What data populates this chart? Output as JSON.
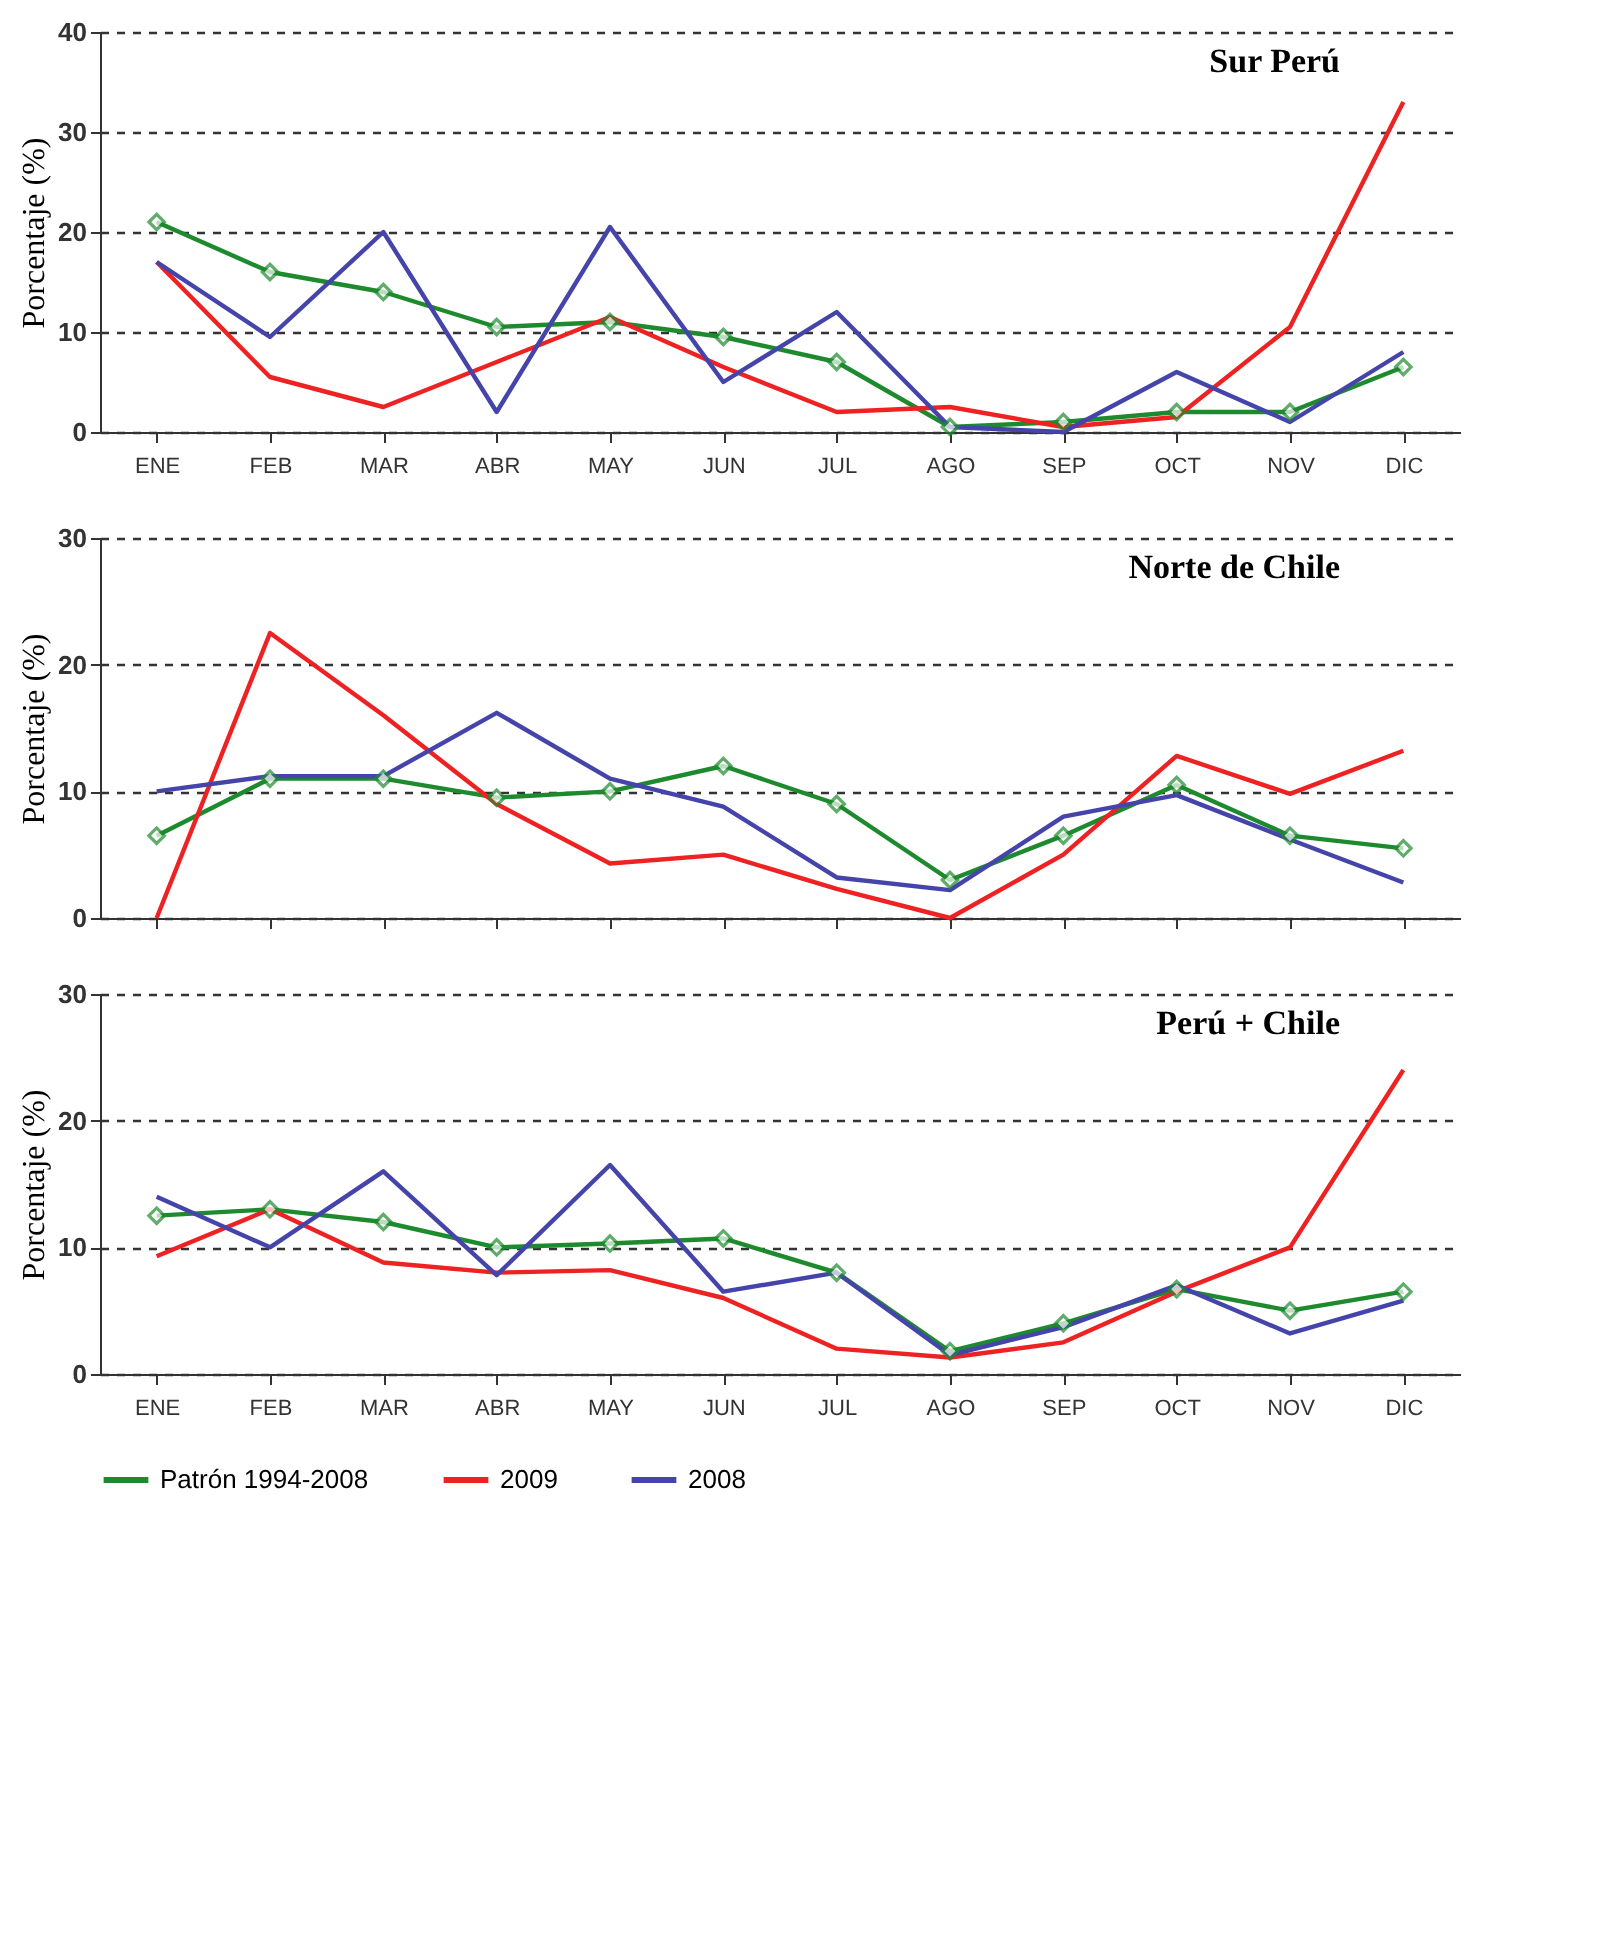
{
  "chart_data": [
    {
      "type": "line",
      "title": "Sur Perú",
      "ylabel": "Porcentaje (%)",
      "categories": [
        "ENE",
        "FEB",
        "MAR",
        "ABR",
        "MAY",
        "JUN",
        "JUL",
        "AGO",
        "SEP",
        "OCT",
        "NOV",
        "DIC"
      ],
      "ylim": [
        0,
        40
      ],
      "yticks": [
        0,
        10,
        20,
        30,
        40
      ],
      "grid": "y",
      "series": [
        {
          "color": "#1e8a2e",
          "marker": "diamond",
          "values": [
            21,
            16,
            14,
            10.5,
            11,
            9.5,
            7,
            0.5,
            1,
            2,
            2,
            6.5
          ]
        },
        {
          "color": "#ee2222",
          "values": [
            17,
            5.5,
            2.5,
            7,
            11.5,
            6.5,
            2,
            2.5,
            0.5,
            1.5,
            10.5,
            33
          ]
        },
        {
          "color": "#4444aa",
          "values": [
            17,
            9.5,
            20,
            2,
            20.5,
            5,
            12,
            0.5,
            0,
            6,
            1,
            8
          ]
        }
      ]
    },
    {
      "type": "line",
      "title": "Norte de Chile",
      "ylabel": "Porcentaje (%)",
      "categories": [
        null,
        null,
        null,
        null,
        null,
        null,
        null,
        null,
        null,
        null,
        null,
        null
      ],
      "ylim": [
        0,
        30
      ],
      "yticks": [
        0,
        10,
        20,
        30
      ],
      "grid": "y",
      "tick_labels": "y",
      "series": [
        {
          "color": "#1e8a2e",
          "marker": "diamond",
          "values": [
            6.5,
            11,
            11,
            9.5,
            10,
            12,
            9,
            3,
            6.5,
            10.5,
            6.5,
            5.5
          ]
        },
        {
          "color": "#ee2222",
          "values": [
            0,
            22.5,
            16,
            9,
            4.3,
            5,
            2.3,
            0,
            5,
            12.8,
            9.8,
            13.2
          ]
        },
        {
          "color": "#4444aa",
          "values": [
            10,
            11.2,
            11.2,
            16.2,
            11,
            8.8,
            3.2,
            2.2,
            8,
            9.7,
            6.2,
            2.8
          ]
        }
      ]
    },
    {
      "type": "line",
      "title": "Perú + Chile",
      "ylabel": "Porcentaje (%)",
      "categories": [
        "ENE",
        "FEB",
        "MAR",
        "ABR",
        "MAY",
        "JUN",
        "JUL",
        "AGO",
        "SEP",
        "OCT",
        "NOV",
        "DIC"
      ],
      "ylim": [
        0,
        30
      ],
      "yticks": [
        0,
        10,
        20,
        30
      ],
      "grid": "y",
      "legend": "bottom",
      "series": [
        {
          "name": "Patrón 1994-2008",
          "color": "#1e8a2e",
          "marker": "diamond",
          "values": [
            12.5,
            13,
            12,
            10,
            10.3,
            10.7,
            8,
            1.8,
            4,
            6.7,
            5,
            6.5
          ]
        },
        {
          "name": "2009",
          "color": "#ee2222",
          "values": [
            9.3,
            13,
            8.8,
            8,
            8.2,
            6,
            2,
            1.3,
            2.5,
            6.5,
            10,
            24
          ]
        },
        {
          "name": "2008",
          "color": "#4444aa",
          "values": [
            14,
            10,
            16,
            7.8,
            16.5,
            6.5,
            8,
            1.5,
            3.7,
            7,
            3.2,
            5.8
          ]
        }
      ]
    }
  ]
}
